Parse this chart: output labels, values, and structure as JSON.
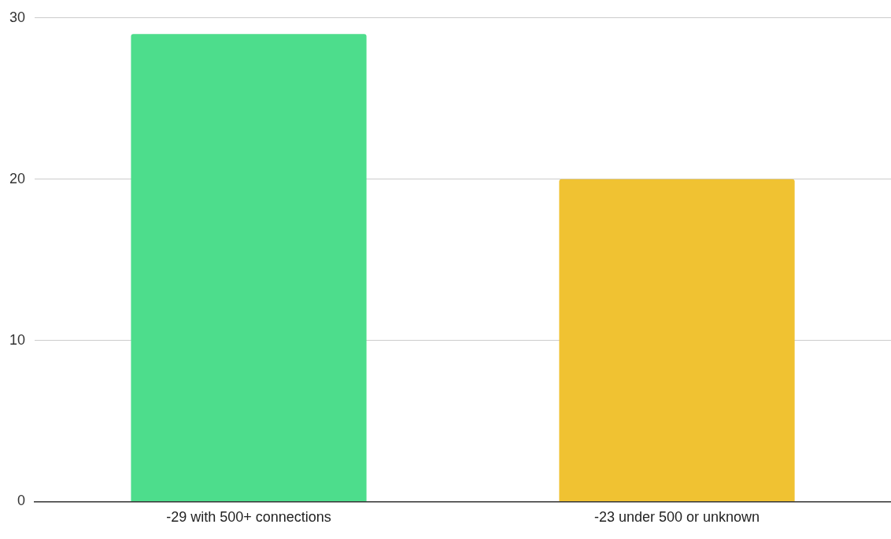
{
  "chart_data": {
    "type": "bar",
    "categories": [
      "-29 with 500+ connections",
      "-23 under 500 or unknown"
    ],
    "values": [
      29,
      20
    ],
    "colors": [
      "#4ddd8c",
      "#f0c232"
    ],
    "ylim": [
      0,
      30
    ],
    "yticks": [
      0,
      10,
      20,
      30
    ],
    "grid": "y",
    "legend": false
  }
}
